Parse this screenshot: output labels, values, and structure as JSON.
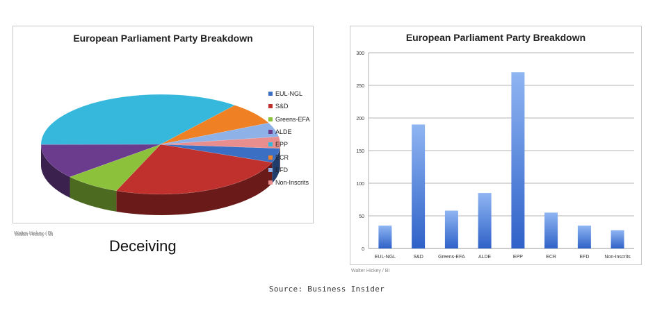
{
  "caption": "Deceiving",
  "source": "Source: Business Insider",
  "chart_data": [
    {
      "type": "pie",
      "title": "European Parliament Party Breakdown",
      "credit": "Walter Hickey / BI",
      "categories": [
        "EUL-NGL",
        "S&D",
        "Greens-EFA",
        "ALDE",
        "EPP",
        "ECR",
        "EFD",
        "Non-Inscrits"
      ],
      "values": [
        35,
        190,
        58,
        85,
        270,
        55,
        35,
        28
      ],
      "colors": [
        "#3a6fc4",
        "#c0302c",
        "#8cc13c",
        "#6b3c8e",
        "#36b8dc",
        "#f08024",
        "#8eb1e8",
        "#e88e8e"
      ],
      "legend_position": "right"
    },
    {
      "type": "bar",
      "title": "European Parliament Party Breakdown",
      "credit": "Walter Hickey / BI",
      "categories": [
        "EUL-NGL",
        "S&D",
        "Greens-EFA",
        "ALDE",
        "EPP",
        "ECR",
        "EFD",
        "Non-Inscrits"
      ],
      "values": [
        35,
        190,
        58,
        85,
        270,
        55,
        35,
        28
      ],
      "ylim": [
        0,
        300
      ],
      "yticks": [
        "0",
        "50",
        "100",
        "150",
        "200",
        "250",
        "300"
      ],
      "grid": true,
      "bar_color": "#4f86e0"
    }
  ]
}
